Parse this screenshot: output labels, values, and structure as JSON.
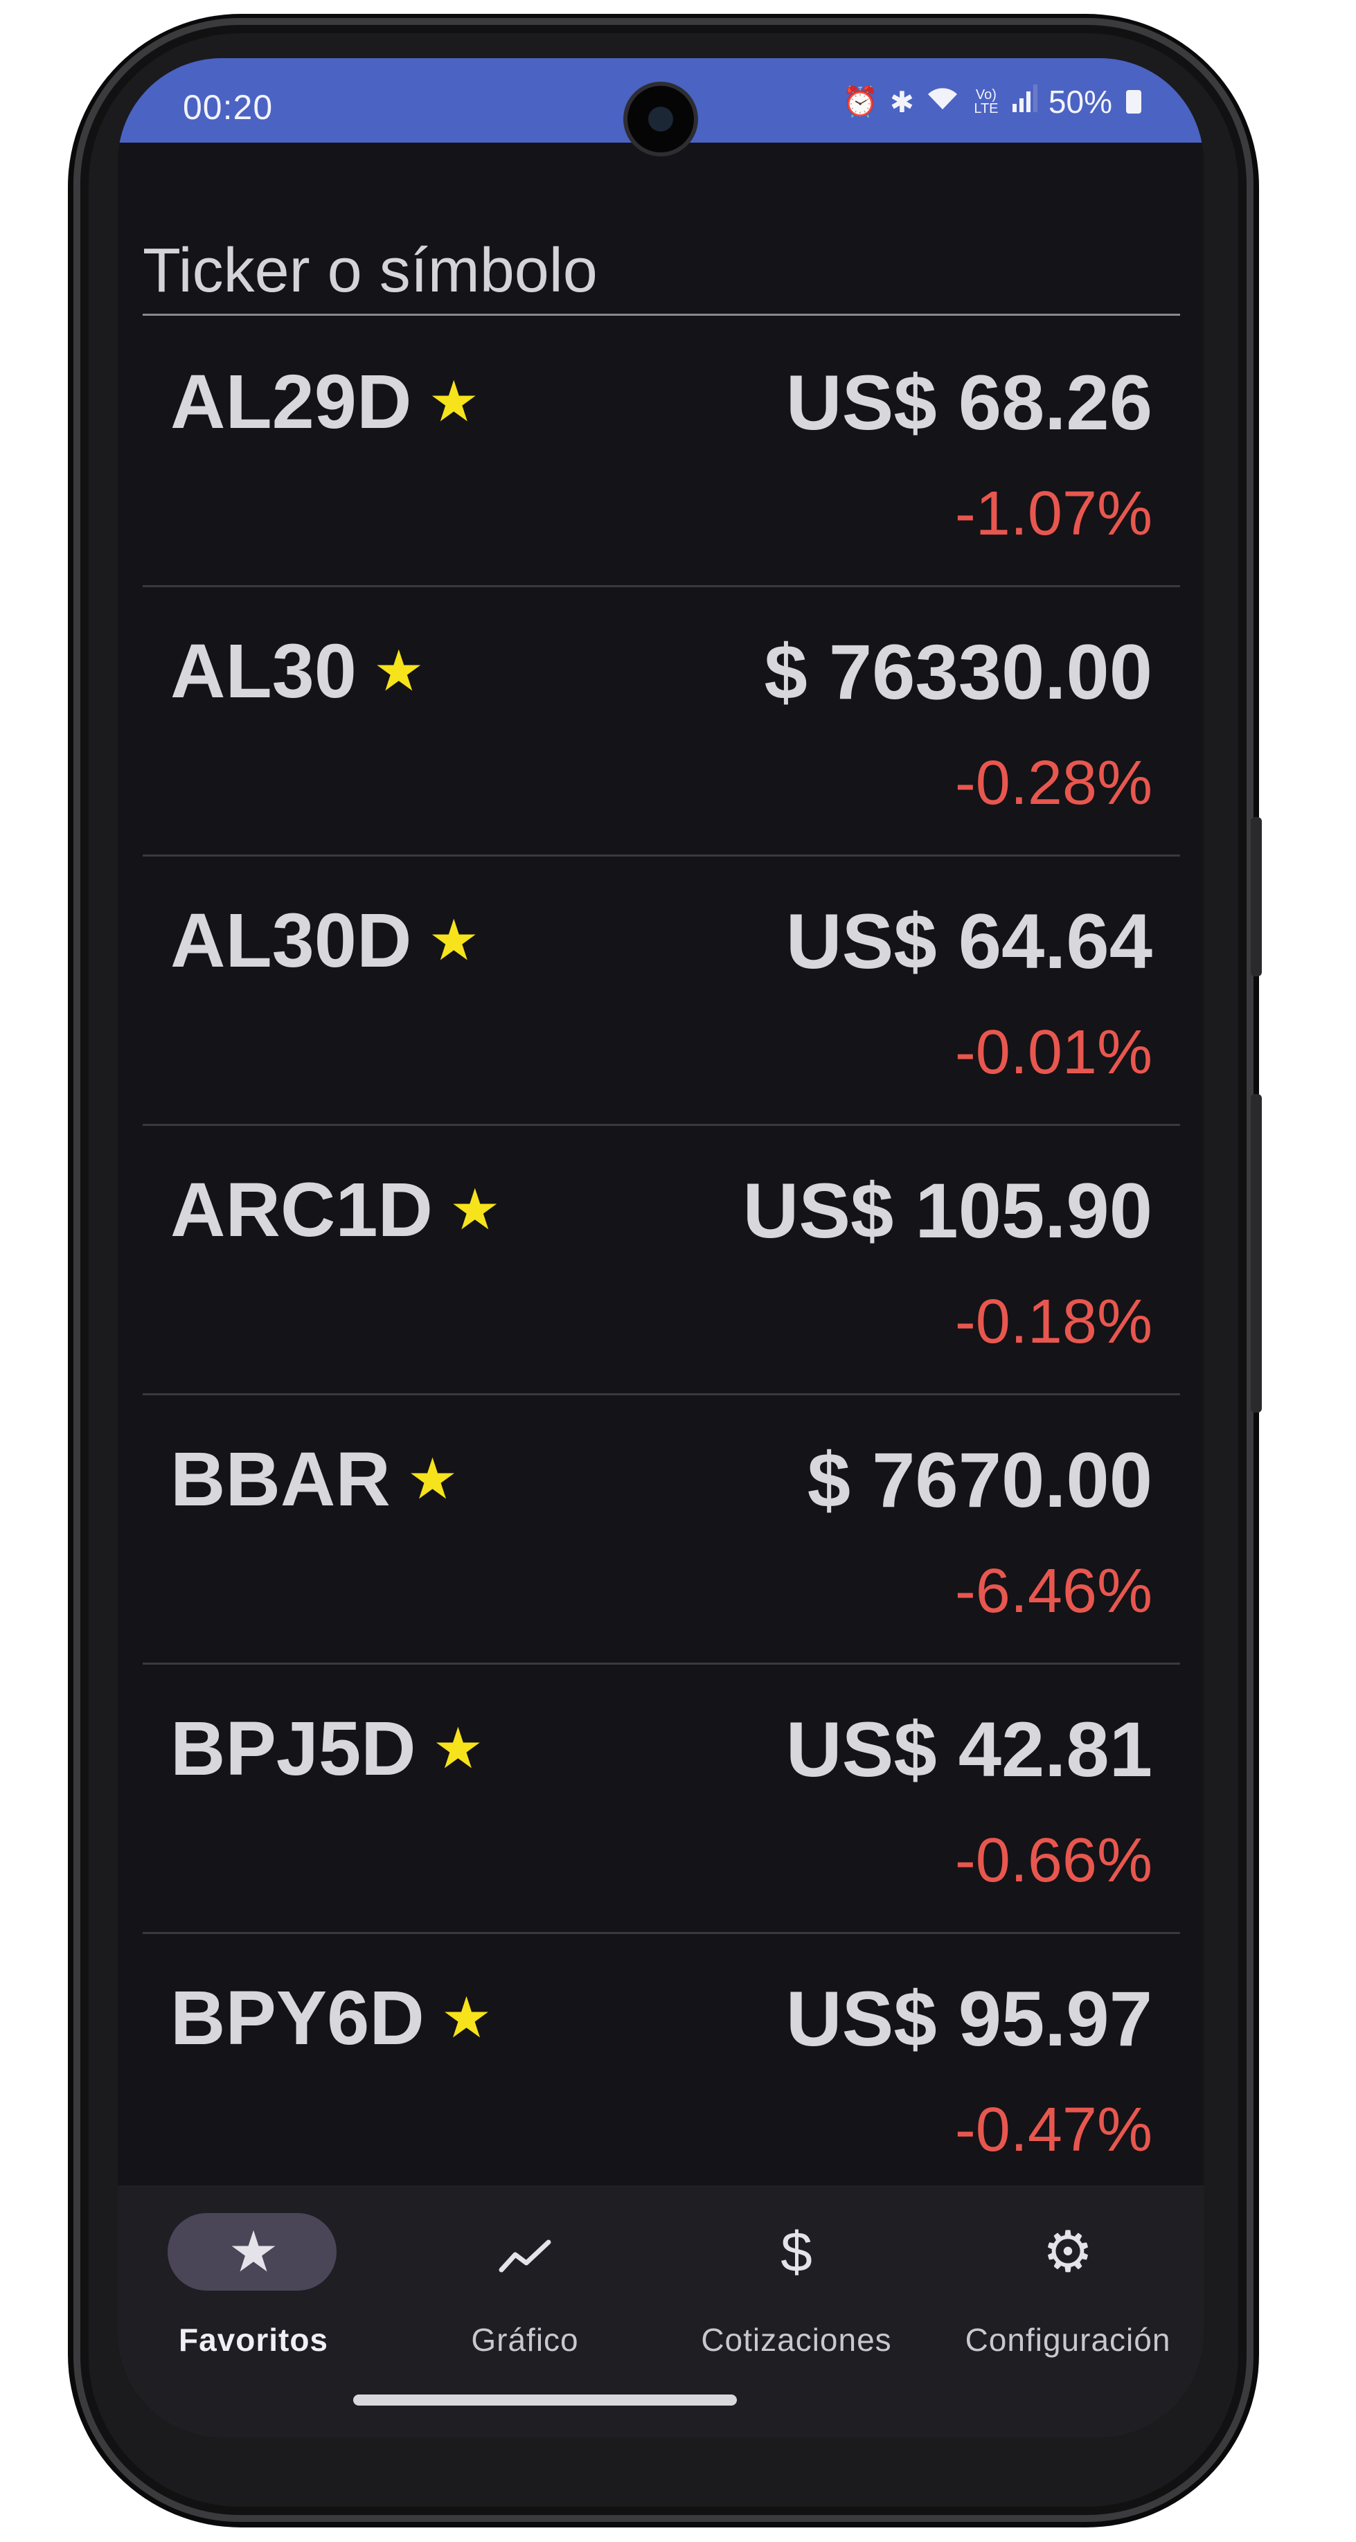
{
  "status_bar": {
    "time": "00:20",
    "icons": [
      "alarm-icon",
      "bluetooth-icon",
      "wifi-icon",
      "volte-icon",
      "signal-icon",
      "battery-icon"
    ],
    "volte_label": "Vo) LTE",
    "battery": "50%"
  },
  "search": {
    "placeholder": "Ticker o símbolo"
  },
  "favorites": [
    {
      "ticker": "AL29D",
      "price": "US$ 68.26",
      "change": "-1.07%"
    },
    {
      "ticker": "AL30",
      "price": "$ 76330.00",
      "change": "-0.28%"
    },
    {
      "ticker": "AL30D",
      "price": "US$ 64.64",
      "change": "-0.01%"
    },
    {
      "ticker": "ARC1D",
      "price": "US$ 105.90",
      "change": "-0.18%"
    },
    {
      "ticker": "BBAR",
      "price": "$ 7670.00",
      "change": "-6.46%"
    },
    {
      "ticker": "BPJ5D",
      "price": "US$ 42.81",
      "change": "-0.66%"
    },
    {
      "ticker": "BPY6D",
      "price": "US$ 95.97",
      "change": "-0.47%"
    }
  ],
  "nav": {
    "items": [
      {
        "label": "Favoritos",
        "icon": "star-icon",
        "active": true
      },
      {
        "label": "Gráfico",
        "icon": "chart-line-icon",
        "active": false
      },
      {
        "label": "Cotizaciones",
        "icon": "dollar-icon",
        "active": false
      },
      {
        "label": "Configuración",
        "icon": "gear-icon",
        "active": false
      }
    ]
  },
  "colors": {
    "status_bar": "#4b63c3",
    "background": "#141317",
    "negative_change": "#e8574f",
    "star": "#f6e31c",
    "nav_background": "#1f1e23",
    "nav_active_pill": "#4a4658"
  }
}
